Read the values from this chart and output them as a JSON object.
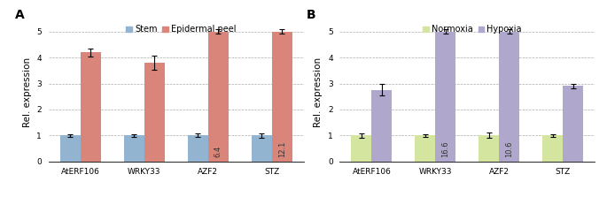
{
  "panel_A": {
    "label": "A",
    "categories": [
      "AtERF106",
      "WRKY33",
      "AZF2",
      "STZ"
    ],
    "bar1_values": [
      1.0,
      1.0,
      1.0,
      1.0
    ],
    "bar1_errors": [
      0.04,
      0.04,
      0.07,
      0.08
    ],
    "bar2_values": [
      4.2,
      3.8,
      5.0,
      5.0
    ],
    "bar2_errors": [
      0.15,
      0.28,
      0.08,
      0.08
    ],
    "bar2_annotations": [
      null,
      null,
      "6.4",
      "12.1"
    ],
    "bar1_color": "#92b4d0",
    "bar2_color": "#d9857a",
    "legend_labels": [
      "Stem",
      "Epidermal peel"
    ],
    "ylabel": "Rel. expression",
    "ylim": [
      0,
      5.3
    ],
    "yticks": [
      0,
      1,
      2,
      3,
      4,
      5
    ]
  },
  "panel_B": {
    "label": "B",
    "categories": [
      "AtERF106",
      "WRKY33",
      "AZF2",
      "STZ"
    ],
    "bar1_values": [
      1.0,
      1.0,
      1.0,
      1.0
    ],
    "bar1_errors": [
      0.08,
      0.04,
      0.1,
      0.04
    ],
    "bar2_values": [
      2.75,
      5.0,
      5.0,
      2.9
    ],
    "bar2_errors": [
      0.22,
      0.08,
      0.08,
      0.1
    ],
    "bar2_annotations": [
      null,
      "16.6",
      "10.6",
      null
    ],
    "bar1_color": "#d4e5a0",
    "bar2_color": "#b0a8cc",
    "legend_labels": [
      "Normoxia",
      "Hypoxia"
    ],
    "ylabel": "Rel. expression",
    "ylim": [
      0,
      5.3
    ],
    "yticks": [
      0,
      1,
      2,
      3,
      4,
      5
    ]
  },
  "bar_width": 0.32,
  "annotation_fontsize": 6.0,
  "tick_fontsize": 6.5,
  "label_fontsize": 7.5,
  "legend_fontsize": 7.0,
  "panel_label_fontsize": 10
}
